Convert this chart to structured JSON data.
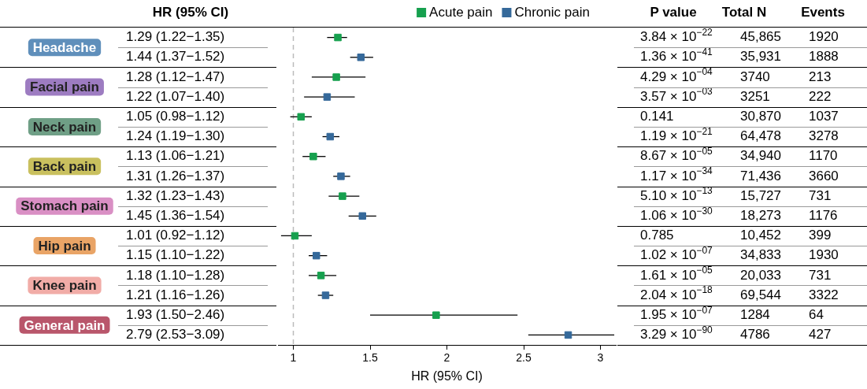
{
  "chart_data": {
    "type": "scatter",
    "xlabel": "HR (95% CI)",
    "categories": [
      "1.29 (1.22−1.35)",
      "1.44 (1.37−1.52)",
      "1.28 (1.12−1.47)",
      "1.22 (1.07−1.40)",
      "1.05 (0.98−1.12)",
      "1.24 (1.19−1.30)",
      "1.13 (1.06−1.21)",
      "1.31 (1.26−1.37)",
      "1.32 (1.23−1.43)",
      "1.45 (1.36−1.54)",
      "1.01 (0.92−1.12)",
      "1.15 (1.10−1.22)",
      "1.18 (1.10−1.28)",
      "1.21 (1.16−1.26)",
      "1.93 (1.50−2.46)",
      "2.79 (2.53−3.09)"
    ],
    "series": [
      {
        "name": "Acute pain",
        "color": "#16a04e",
        "values": [
          1.29,
          null,
          1.28,
          null,
          1.05,
          null,
          1.13,
          null,
          1.32,
          null,
          1.01,
          null,
          1.18,
          null,
          1.93,
          null
        ],
        "errors": [
          [
            1.22,
            1.35
          ],
          null,
          [
            1.12,
            1.47
          ],
          null,
          [
            0.98,
            1.12
          ],
          null,
          [
            1.06,
            1.21
          ],
          null,
          [
            1.23,
            1.43
          ],
          null,
          [
            0.92,
            1.12
          ],
          null,
          [
            1.1,
            1.28
          ],
          null,
          [
            1.5,
            2.46
          ],
          null
        ]
      },
      {
        "name": "Chronic pain",
        "color": "#35699a",
        "values": [
          null,
          1.44,
          null,
          1.22,
          null,
          1.24,
          null,
          1.31,
          null,
          1.45,
          null,
          1.15,
          null,
          1.21,
          null,
          2.79
        ],
        "errors": [
          null,
          [
            1.37,
            1.52
          ],
          null,
          [
            1.07,
            1.4
          ],
          null,
          [
            1.19,
            1.3
          ],
          null,
          [
            1.26,
            1.37
          ],
          null,
          [
            1.36,
            1.54
          ],
          null,
          [
            1.1,
            1.22
          ],
          null,
          [
            1.16,
            1.26
          ],
          null,
          [
            2.53,
            3.09
          ]
        ]
      }
    ],
    "xlim": [
      0.9,
      3.1
    ],
    "xticks": [
      1,
      1.5,
      2,
      2.5,
      3
    ],
    "ref_lines": [
      {
        "axis": "x",
        "value": 1,
        "color": "#bbbbbb",
        "line_style": "dashed"
      }
    ],
    "orientation": "horizontal",
    "marker": "square",
    "grid": false,
    "legend": "top",
    "annotations": [
      "HR (95% CI)",
      "P value",
      "Total N",
      "Events",
      "Headache",
      "3.84 × 10$^{−22}$",
      "45,865",
      "1920",
      "1.36 × 10$^{−41}$",
      "35,931",
      "1888",
      "Facial pain",
      "4.29 × 10$^{−04}$",
      "3740",
      "213",
      "3.57 × 10$^{−03}$",
      "3251",
      "222",
      "Neck pain",
      "0.141",
      "30,870",
      "1037",
      "1.19 × 10$^{−21}$",
      "64,478",
      "3278",
      "Back pain",
      "8.67 × 10$^{−05}$",
      "34,940",
      "1170",
      "1.17 × 10$^{−34}$",
      "71,436",
      "3660",
      "Stomach pain",
      "5.10 × 10$^{−13}$",
      "15,727",
      "731",
      "1.06 × 10$^{−30}$",
      "18,273",
      "1176",
      "Hip pain",
      "0.785",
      "10,452",
      "399",
      "1.02 × 10$^{−07}$",
      "34,833",
      "1930",
      "Knee pain",
      "1.61 × 10$^{−05}$",
      "20,033",
      "731",
      "2.04 × 10$^{−18}$",
      "69,544",
      "3322",
      "General pain",
      "1.95 × 10$^{−07}$",
      "1284",
      "64",
      "3.29 × 10$^{−90}$",
      "4786",
      "427"
    ]
  }
}
